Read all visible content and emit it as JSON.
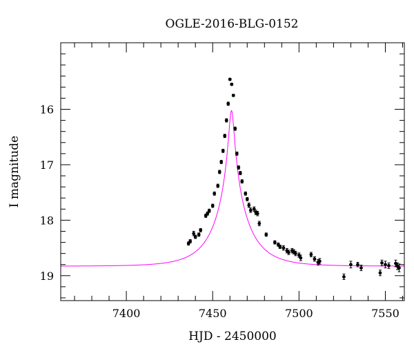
{
  "chart_data": {
    "type": "scatter",
    "title": "OGLE-2016-BLG-0152",
    "xlabel": "HJD - 2450000",
    "ylabel": "I magnitude",
    "xlim": [
      7362,
      7561
    ],
    "ylim": [
      19.45,
      14.8
    ],
    "y_inverted": true,
    "grid": false,
    "legend": "none",
    "xticks": [
      7400,
      7450,
      7500,
      7550
    ],
    "xtick_labels": [
      "7400",
      "7450",
      "7500",
      "7550"
    ],
    "yticks": [
      16,
      17,
      18,
      19
    ],
    "ytick_labels": [
      "16",
      "17",
      "18",
      "19"
    ],
    "colors": {
      "data": "#000000",
      "model": "#ff00ff",
      "axes": "#000000"
    },
    "series": [
      {
        "kind": "points_with_errorbars",
        "x": [
          7436,
          7437,
          7439,
          7440,
          7442,
          7443,
          7446,
          7447,
          7448,
          7450,
          7451,
          7453,
          7454,
          7455,
          7456,
          7457,
          7458,
          7459,
          7460,
          7461,
          7462,
          7463,
          7464,
          7465,
          7466,
          7467,
          7469,
          7470,
          7471,
          7472,
          7474,
          7475,
          7476,
          7477,
          7481,
          7486,
          7488,
          7489,
          7491,
          7493,
          7494,
          7496,
          7497,
          7498,
          7500,
          7501,
          7507,
          7509,
          7511,
          7512,
          7526,
          7530,
          7534,
          7536,
          7547,
          7548,
          7550,
          7552,
          7556,
          7557,
          7558
        ],
        "y": [
          18.42,
          18.38,
          18.24,
          18.3,
          18.26,
          18.18,
          17.92,
          17.88,
          17.83,
          17.74,
          17.52,
          17.38,
          17.13,
          16.95,
          16.75,
          16.48,
          16.2,
          15.9,
          15.46,
          15.55,
          15.75,
          16.35,
          16.8,
          17.05,
          17.15,
          17.3,
          17.52,
          17.62,
          17.73,
          17.82,
          17.8,
          17.86,
          17.88,
          18.06,
          18.26,
          18.4,
          18.44,
          18.48,
          18.5,
          18.55,
          18.58,
          18.55,
          18.57,
          18.6,
          18.63,
          18.68,
          18.62,
          18.7,
          18.76,
          18.74,
          19.02,
          18.8,
          18.8,
          18.86,
          18.95,
          18.77,
          18.8,
          18.82,
          18.78,
          18.83,
          18.86
        ],
        "err": [
          0.03,
          0.03,
          0.04,
          0.03,
          0.03,
          0.03,
          0.03,
          0.03,
          0.03,
          0.03,
          0.03,
          0.03,
          0.03,
          0.03,
          0.03,
          0.03,
          0.03,
          0.03,
          0.02,
          0.02,
          0.02,
          0.03,
          0.03,
          0.03,
          0.03,
          0.03,
          0.03,
          0.03,
          0.04,
          0.04,
          0.04,
          0.04,
          0.04,
          0.04,
          0.03,
          0.03,
          0.03,
          0.03,
          0.04,
          0.04,
          0.04,
          0.04,
          0.04,
          0.04,
          0.04,
          0.05,
          0.04,
          0.04,
          0.05,
          0.05,
          0.05,
          0.06,
          0.04,
          0.05,
          0.05,
          0.05,
          0.06,
          0.05,
          0.06,
          0.06,
          0.07
        ]
      },
      {
        "kind": "model_curve",
        "model": {
          "t0": 7460.9,
          "tE": 19,
          "u0": 0.074,
          "base_mag": 18.83,
          "fs": 0.98
        }
      }
    ]
  }
}
